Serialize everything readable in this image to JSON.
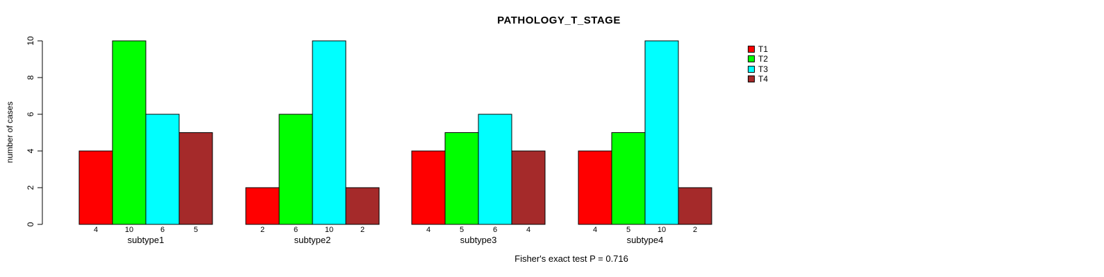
{
  "page": {
    "background": "#ffffff",
    "text_color": "#000000"
  },
  "chart_data": {
    "type": "bar",
    "title": "PATHOLOGY_T_STAGE",
    "ylabel": "number of cases",
    "xlabel": "",
    "footnote": "Fisher's exact test P = 0.716",
    "ylim": [
      0,
      10
    ],
    "yticks": [
      0,
      2,
      4,
      6,
      8,
      10
    ],
    "grid": false,
    "legend_position": "right",
    "axis_color": "#000000",
    "bar_border_color": "#000000",
    "categories": [
      "subtype1",
      "subtype2",
      "subtype3",
      "subtype4"
    ],
    "series": [
      {
        "name": "T1",
        "color": "#FF0000",
        "values": [
          4,
          2,
          4,
          4
        ]
      },
      {
        "name": "T2",
        "color": "#00FF00",
        "values": [
          10,
          6,
          5,
          5
        ]
      },
      {
        "name": "T3",
        "color": "#00FFFF",
        "values": [
          6,
          10,
          6,
          10
        ]
      },
      {
        "name": "T4",
        "color": "#A52A2A",
        "values": [
          5,
          2,
          4,
          2
        ]
      }
    ],
    "bar_value_labels": [
      [
        "4",
        "10",
        "6",
        "5"
      ],
      [
        "2",
        "6",
        "10",
        "2"
      ],
      [
        "4",
        "5",
        "6",
        "4"
      ],
      [
        "4",
        "5",
        "10",
        "2"
      ]
    ]
  }
}
